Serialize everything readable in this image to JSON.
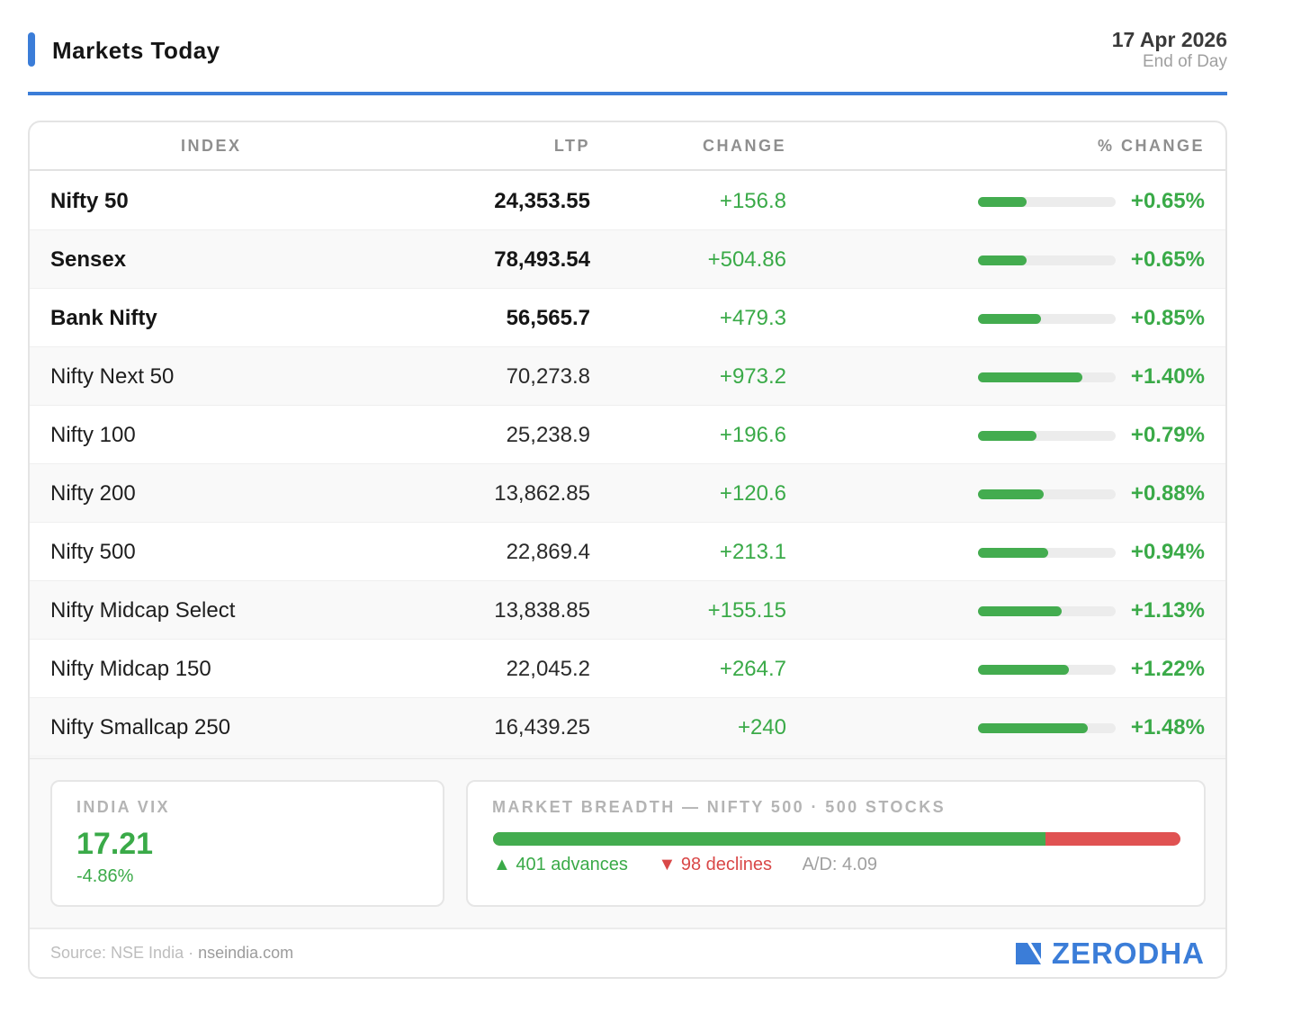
{
  "header": {
    "title": "Markets Today",
    "date": "17 Apr 2026",
    "subtitle": "End of Day",
    "accent_color": "#3b7dd8"
  },
  "table": {
    "columns": {
      "index": "INDEX",
      "ltp": "LTP",
      "change": "CHANGE",
      "pct_change": "% CHANGE"
    },
    "rows": [
      {
        "name": "Nifty 50",
        "ltp": "24,353.55",
        "change": "+156.8",
        "pct": "+0.65%",
        "pct_value": 0.65,
        "bold": true
      },
      {
        "name": "Sensex",
        "ltp": "78,493.54",
        "change": "+504.86",
        "pct": "+0.65%",
        "pct_value": 0.65,
        "bold": true
      },
      {
        "name": "Bank Nifty",
        "ltp": "56,565.7",
        "change": "+479.3",
        "pct": "+0.85%",
        "pct_value": 0.85,
        "bold": true
      },
      {
        "name": "Nifty Next 50",
        "ltp": "70,273.8",
        "change": "+973.2",
        "pct": "+1.40%",
        "pct_value": 1.4,
        "bold": false
      },
      {
        "name": "Nifty 100",
        "ltp": "25,238.9",
        "change": "+196.6",
        "pct": "+0.79%",
        "pct_value": 0.79,
        "bold": false
      },
      {
        "name": "Nifty 200",
        "ltp": "13,862.85",
        "change": "+120.6",
        "pct": "+0.88%",
        "pct_value": 0.88,
        "bold": false
      },
      {
        "name": "Nifty 500",
        "ltp": "22,869.4",
        "change": "+213.1",
        "pct": "+0.94%",
        "pct_value": 0.94,
        "bold": false
      },
      {
        "name": "Nifty Midcap Select",
        "ltp": "13,838.85",
        "change": "+155.15",
        "pct": "+1.13%",
        "pct_value": 1.13,
        "bold": false
      },
      {
        "name": "Nifty Midcap 150",
        "ltp": "22,045.2",
        "change": "+264.7",
        "pct": "+1.22%",
        "pct_value": 1.22,
        "bold": false
      },
      {
        "name": "Nifty Smallcap 250",
        "ltp": "16,439.25",
        "change": "+240",
        "pct": "+1.48%",
        "pct_value": 1.48,
        "bold": false
      }
    ],
    "bar_scale_max_pct": 1.85,
    "positive_color": "#3aaa48"
  },
  "vix": {
    "label": "INDIA VIX",
    "value": "17.21",
    "change": "-4.86%"
  },
  "breadth": {
    "label": "MARKET BREADTH — NIFTY 500 · 500 STOCKS",
    "advances": 401,
    "declines": 98,
    "advances_text": "▲ 401 advances",
    "declines_text": "▼ 98 declines",
    "ad_ratio_text": "A/D: 4.09",
    "advance_color": "#43ac4f",
    "decline_color": "#e05252"
  },
  "footer": {
    "source_prefix": "Source: NSE India · ",
    "source_site": "nseindia.com",
    "brand": "ZERODHA",
    "brand_icon": "zerodha-logo-icon"
  }
}
